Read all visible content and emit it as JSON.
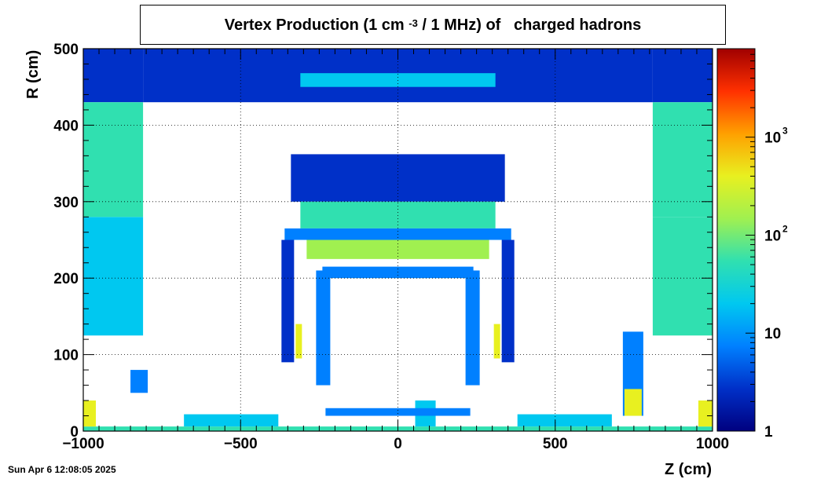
{
  "chart_data": {
    "type": "heatmap",
    "title_parts": {
      "before_sup": "Vertex Production (1 cm",
      "sup": "-3",
      "after_sup": " / 1 MHz) of   charged hadrons"
    },
    "xlabel": "Z (cm)",
    "ylabel": "R (cm)",
    "xlim": [
      -1000,
      1000
    ],
    "ylim": [
      0,
      500
    ],
    "x_ticks": [
      -1000,
      -500,
      0,
      500,
      1000
    ],
    "x_tick_labels": [
      "−1000",
      "−500",
      "0",
      "500",
      "1000"
    ],
    "y_ticks": [
      0,
      100,
      200,
      300,
      400,
      500
    ],
    "y_tick_labels": [
      "0",
      "100",
      "200",
      "300",
      "400",
      "500"
    ],
    "grid": true,
    "colorbar": {
      "scale": "log",
      "range": [
        1,
        8000
      ],
      "labels": [
        {
          "value": 1,
          "base": "1",
          "exp": ""
        },
        {
          "value": 10,
          "base": "10",
          "exp": ""
        },
        {
          "value": 100,
          "base": "10",
          "exp": "2"
        },
        {
          "value": 1000,
          "base": "10",
          "exp": "3"
        }
      ],
      "colormap": [
        "#00007f",
        "#0030c8",
        "#0080ff",
        "#00c8f0",
        "#30e0b0",
        "#a0f050",
        "#e8f020",
        "#ffa000",
        "#ff3000",
        "#a00000"
      ]
    },
    "regions": [
      {
        "name": "forward-shell-left",
        "z": [
          -1000,
          -810
        ],
        "r": [
          430,
          500
        ],
        "value": 3
      },
      {
        "name": "forward-shell-right",
        "z": [
          810,
          1000
        ],
        "r": [
          430,
          500
        ],
        "value": 3
      },
      {
        "name": "outer-shell-top",
        "z": [
          -810,
          810
        ],
        "r": [
          430,
          500
        ],
        "value": 2
      },
      {
        "name": "outer-shell-band",
        "z": [
          -310,
          310
        ],
        "r": [
          450,
          468
        ],
        "value": 15
      },
      {
        "name": "endcap-yoke-left",
        "z": [
          -1000,
          -810
        ],
        "r": [
          125,
          280
        ],
        "value": 25
      },
      {
        "name": "endcap-yoke-left-upper",
        "z": [
          -1000,
          -810
        ],
        "r": [
          280,
          430
        ],
        "value": 60
      },
      {
        "name": "endcap-yoke-right",
        "z": [
          810,
          1000
        ],
        "r": [
          125,
          280
        ],
        "value": 70
      },
      {
        "name": "endcap-yoke-right-upper",
        "z": [
          810,
          1000
        ],
        "r": [
          280,
          430
        ],
        "value": 60
      },
      {
        "name": "solenoid-top",
        "z": [
          -340,
          340
        ],
        "r": [
          300,
          362
        ],
        "value": 2
      },
      {
        "name": "hcal-barrel",
        "z": [
          -310,
          310
        ],
        "r": [
          265,
          300
        ],
        "value": 40
      },
      {
        "name": "hcal-frame",
        "z": [
          -360,
          360
        ],
        "r": [
          250,
          265
        ],
        "value": 12
      },
      {
        "name": "ecal-barrel",
        "z": [
          -290,
          290
        ],
        "r": [
          225,
          250
        ],
        "value": 90
      },
      {
        "name": "inner-frame-top",
        "z": [
          -240,
          240
        ],
        "r": [
          200,
          215
        ],
        "value": 12
      },
      {
        "name": "left-wall",
        "z": [
          -370,
          -330
        ],
        "r": [
          90,
          250
        ],
        "value": 3
      },
      {
        "name": "right-wall",
        "z": [
          330,
          370
        ],
        "r": [
          90,
          250
        ],
        "value": 3
      },
      {
        "name": "left-hot-strip",
        "z": [
          -325,
          -305
        ],
        "r": [
          95,
          140
        ],
        "value": 400
      },
      {
        "name": "right-hot-strip",
        "z": [
          305,
          325
        ],
        "r": [
          95,
          140
        ],
        "value": 400
      },
      {
        "name": "tracker-left-wall",
        "z": [
          -260,
          -215
        ],
        "r": [
          60,
          210
        ],
        "value": 12
      },
      {
        "name": "tracker-right-wall",
        "z": [
          215,
          260
        ],
        "r": [
          60,
          210
        ],
        "value": 12
      },
      {
        "name": "beamline",
        "z": [
          -1000,
          1000
        ],
        "r": [
          0,
          6
        ],
        "value": 80
      },
      {
        "name": "beamline-left-section",
        "z": [
          -680,
          -380
        ],
        "r": [
          6,
          22
        ],
        "value": 15
      },
      {
        "name": "beamline-right-section",
        "z": [
          380,
          680
        ],
        "r": [
          6,
          22
        ],
        "value": 15
      },
      {
        "name": "vertex-detector",
        "z": [
          55,
          120
        ],
        "r": [
          6,
          40
        ],
        "value": 25
      },
      {
        "name": "inner-ring",
        "z": [
          -230,
          230
        ],
        "r": [
          20,
          30
        ],
        "value": 10
      },
      {
        "name": "forward-left-block",
        "z": [
          -1000,
          -960
        ],
        "r": [
          6,
          40
        ],
        "value": 500
      },
      {
        "name": "forward-right-block",
        "z": [
          955,
          1000
        ],
        "r": [
          6,
          40
        ],
        "value": 500
      },
      {
        "name": "small-block-left",
        "z": [
          -850,
          -795
        ],
        "r": [
          50,
          80
        ],
        "value": 10
      },
      {
        "name": "mid-right-tower",
        "z": [
          715,
          780
        ],
        "r": [
          20,
          130
        ],
        "value": 12
      },
      {
        "name": "mid-right-tower-hot",
        "z": [
          720,
          775
        ],
        "r": [
          20,
          55
        ],
        "value": 300
      }
    ]
  },
  "timestamp": "Sun Apr  6 12:08:05 2025"
}
